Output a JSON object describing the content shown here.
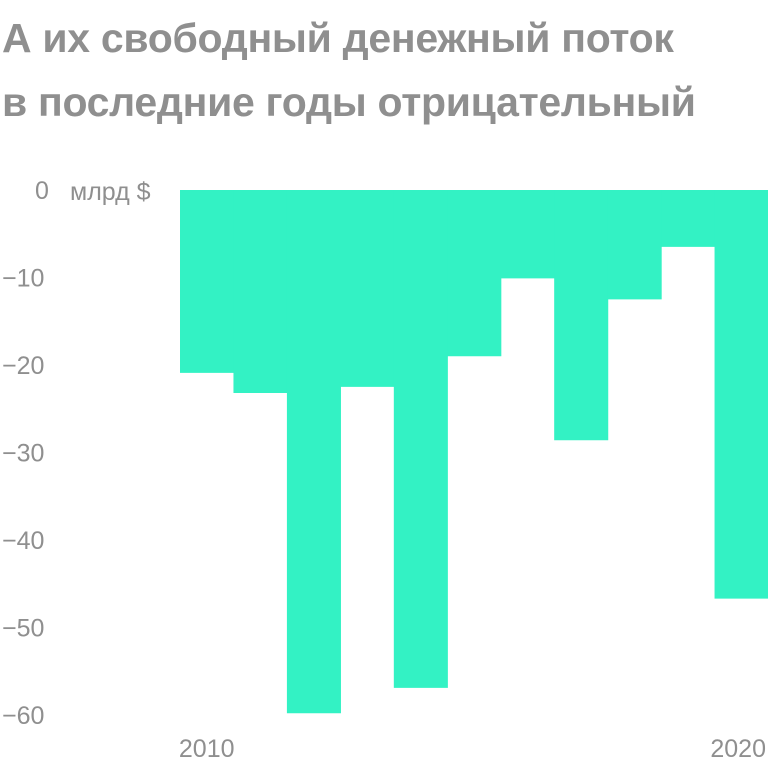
{
  "title_lines": [
    "А их свободный денежный поток",
    "в последние годы отрицательный"
  ],
  "chart_data": {
    "type": "bar",
    "title": "А их свободный денежный поток в последние годы отрицательный",
    "unit": "млрд $",
    "categories": [
      "2010",
      "2011",
      "2012",
      "2013",
      "2014",
      "2015",
      "2016",
      "2017",
      "2018",
      "2019",
      "2020"
    ],
    "values": [
      -20.9,
      -23.2,
      -59.8,
      -22.5,
      -56.9,
      -19.0,
      -10.1,
      -28.6,
      -12.5,
      -6.5,
      -46.7
    ],
    "ylim": [
      -60,
      0
    ],
    "yticks": [
      {
        "value": 0,
        "label": "0"
      },
      {
        "value": -10,
        "label": "−10"
      },
      {
        "value": -20,
        "label": "−20"
      },
      {
        "value": -30,
        "label": "−30"
      },
      {
        "value": -40,
        "label": "−40"
      },
      {
        "value": -50,
        "label": "−50"
      },
      {
        "value": -60,
        "label": "−60"
      }
    ],
    "xtick_labels": [
      {
        "category": "2010",
        "label": "2010"
      },
      {
        "category": "2020",
        "label": "2020"
      }
    ],
    "bar_color": "#33f2c4",
    "text_color": "#8f8f8f",
    "grid": false,
    "legend": "none"
  }
}
